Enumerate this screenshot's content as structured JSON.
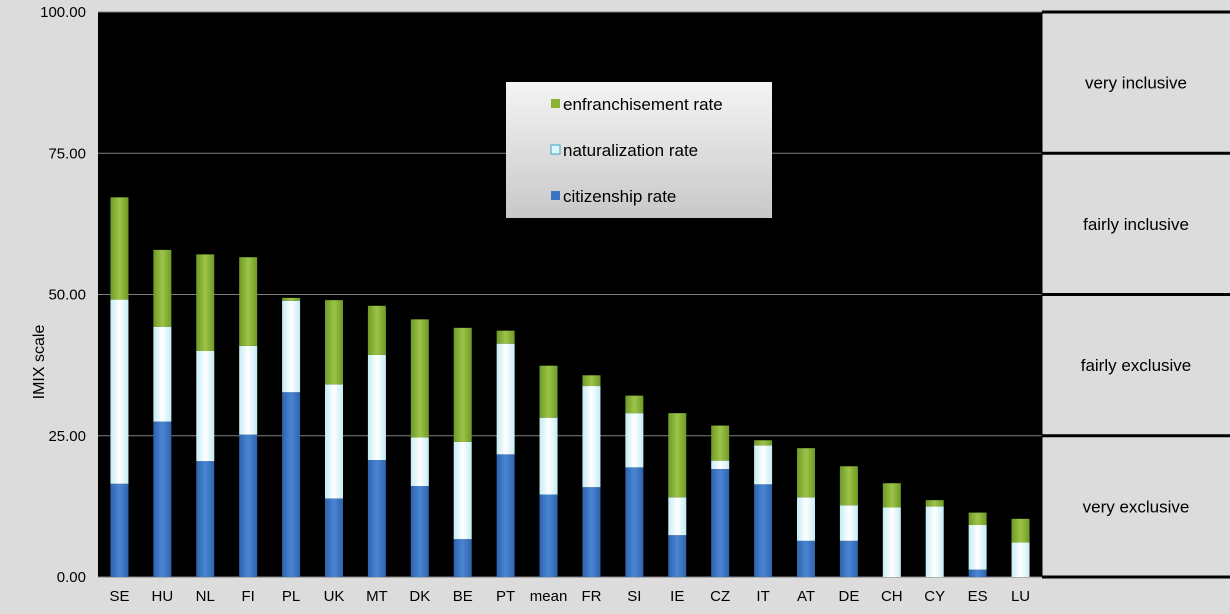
{
  "chart_data": {
    "type": "bar",
    "stacked": true,
    "ylabel": "IMIX  scale",
    "ylim": [
      0,
      100
    ],
    "yticks": [
      "0.00",
      "25.00",
      "50.00",
      "75.00",
      "100.00"
    ],
    "categories": [
      "SE",
      "HU",
      "NL",
      "FI",
      "PL",
      "UK",
      "MT",
      "DK",
      "BE",
      "PT",
      "mean",
      "FR",
      "SI",
      "IE",
      "CZ",
      "IT",
      "AT",
      "DE",
      "CH",
      "CY",
      "ES",
      "LU"
    ],
    "series": [
      {
        "name": "citizenship rate",
        "color": "#3a75c4",
        "values": [
          16.5,
          27.5,
          20.5,
          25.2,
          32.7,
          13.9,
          20.7,
          16.1,
          6.7,
          21.7,
          14.6,
          15.9,
          19.4,
          7.4,
          19.1,
          16.4,
          6.4,
          6.4,
          0.0,
          0.0,
          1.3,
          0.0
        ]
      },
      {
        "name": "naturalization rate",
        "color": "#dff6fb",
        "values": [
          32.6,
          16.8,
          19.5,
          15.7,
          16.2,
          20.2,
          18.6,
          8.6,
          17.2,
          19.6,
          13.6,
          17.9,
          9.6,
          6.7,
          1.5,
          6.9,
          7.7,
          6.3,
          12.3,
          12.5,
          7.9,
          6.1
        ]
      },
      {
        "name": "enfranchisement rate",
        "color": "#8bb235",
        "values": [
          18.1,
          13.6,
          17.1,
          15.7,
          0.5,
          14.9,
          8.7,
          20.9,
          20.2,
          2.3,
          9.2,
          1.9,
          3.1,
          14.9,
          6.2,
          0.9,
          8.7,
          6.9,
          4.3,
          1.1,
          2.2,
          4.2
        ]
      }
    ],
    "legend_order": [
      "enfranchisement rate",
      "naturalization rate",
      "citizenship rate"
    ],
    "bands": [
      {
        "label": "very inclusive",
        "from": 75,
        "to": 100
      },
      {
        "label": "fairly inclusive",
        "from": 50,
        "to": 75
      },
      {
        "label": "fairly exclusive",
        "from": 25,
        "to": 50
      },
      {
        "label": "very exclusive",
        "from": 0,
        "to": 25
      }
    ],
    "grid": true,
    "plot_background": "#000000",
    "legend_position": "top-center"
  }
}
